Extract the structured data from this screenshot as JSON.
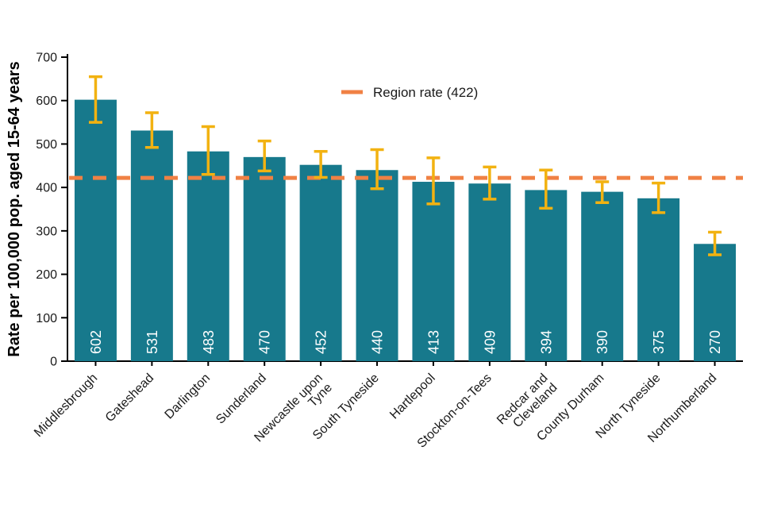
{
  "chart_data": {
    "type": "bar",
    "title": "",
    "xlabel": "",
    "ylabel": "Rate per 100,000 pop. aged 15-64 years",
    "ylim": [
      0,
      700
    ],
    "ytick_step": 100,
    "grid": false,
    "legend": {
      "label": "Region rate (422)",
      "position": "top-center",
      "style": "dashed-line"
    },
    "region_rate": 422,
    "categories": [
      "Middlesbrough",
      "Gateshead",
      "Darlington",
      "Sunderland",
      "Newcastle upon\nTyne",
      "South Tyneside",
      "Hartlepool",
      "Stockton-on-Tees",
      "Redcar and\nCleveland",
      "County Durham",
      "North Tyneside",
      "Northumberland"
    ],
    "values": [
      602,
      531,
      483,
      470,
      452,
      440,
      413,
      409,
      394,
      390,
      375,
      270
    ],
    "error_low": [
      550,
      492,
      430,
      438,
      423,
      397,
      362,
      373,
      352,
      365,
      342,
      245
    ],
    "error_high": [
      655,
      572,
      540,
      507,
      483,
      487,
      468,
      447,
      440,
      413,
      410,
      297
    ],
    "colors": {
      "bar": "#17798C",
      "error_bar": "#F2B211",
      "region_line": "#F08144",
      "value_label": "#FFFFFF",
      "axis": "#000000",
      "text": "#1a1a1a",
      "background": "#FFFFFF"
    }
  }
}
